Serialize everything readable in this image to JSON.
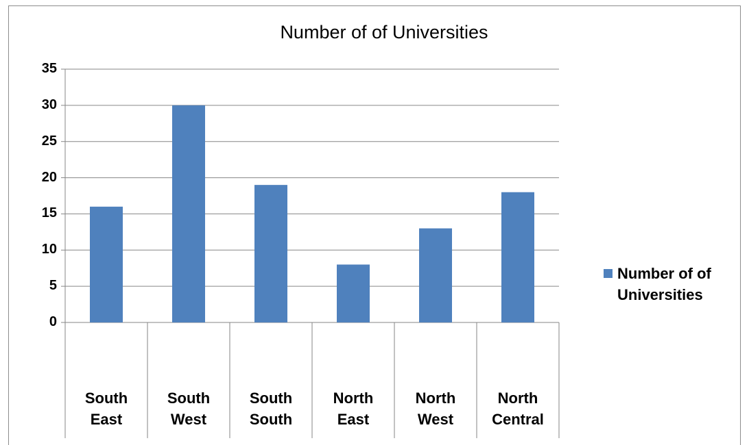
{
  "chart_data": {
    "type": "bar",
    "title": "Number of of Universities",
    "categories": [
      "South East",
      "South West",
      "South South",
      "North East",
      "North West",
      "North Central"
    ],
    "series": [
      {
        "name": "Number of of Universities",
        "color": "#4f81bd",
        "values": [
          16,
          30,
          19,
          8,
          13,
          18
        ]
      }
    ],
    "ylim": [
      0,
      35
    ],
    "yticks": [
      0,
      5,
      10,
      15,
      20,
      25,
      30,
      35
    ],
    "grid": true,
    "legend": "right"
  }
}
